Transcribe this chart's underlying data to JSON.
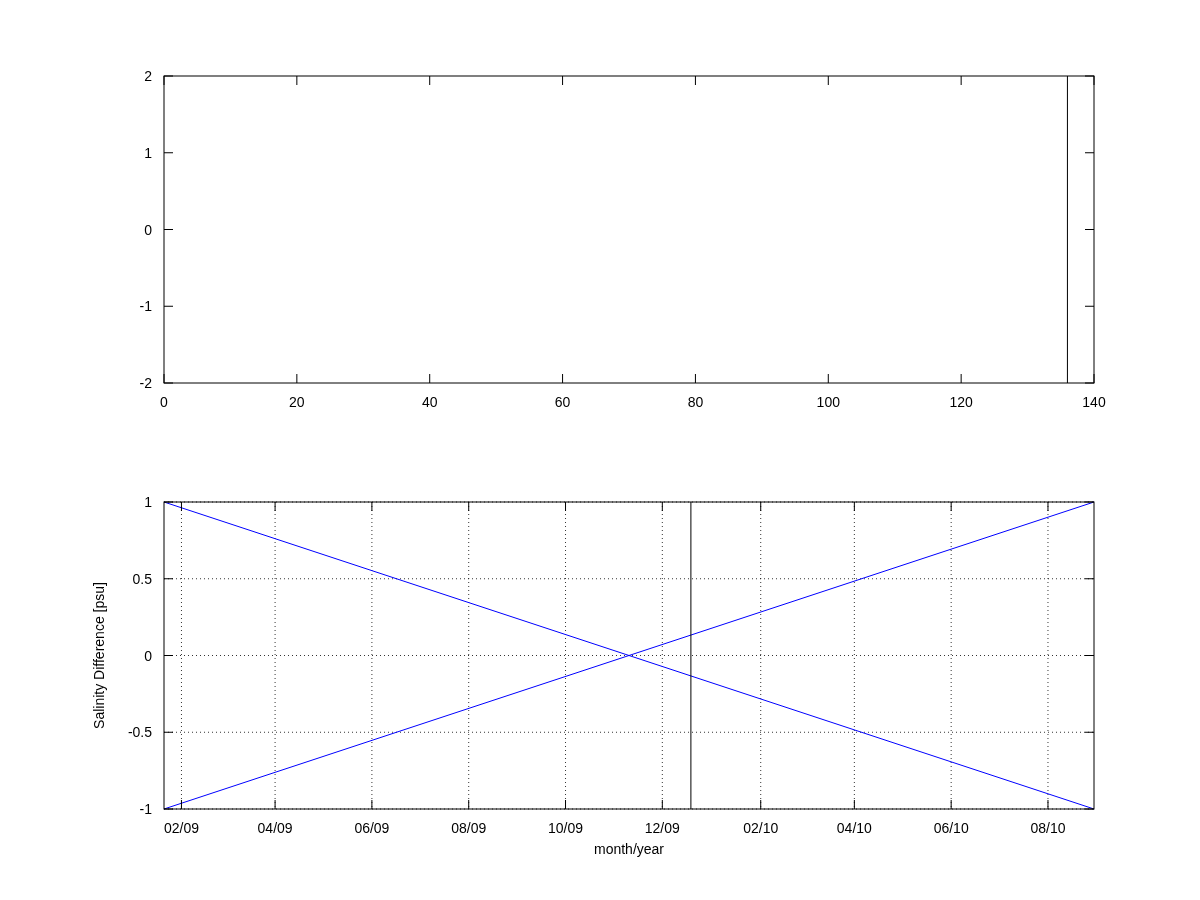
{
  "chart_data": [
    {
      "type": "line",
      "xlim": [
        0,
        140
      ],
      "xticks": [
        0,
        20,
        40,
        60,
        80,
        100,
        120,
        140
      ],
      "ylim": [
        -2,
        2
      ],
      "yticks": [
        -2,
        -1,
        0,
        1,
        2
      ],
      "ref_lines": [
        {
          "axis": "x",
          "value": 136,
          "color": "#000000"
        }
      ]
    },
    {
      "type": "line",
      "xlabel": "month/year",
      "ylabel": "Salinity Difference [psu]",
      "xlim": [
        "2009-01-21",
        "2010-08-30"
      ],
      "xticks": [
        {
          "value": "2009-02",
          "label": "02/09"
        },
        {
          "value": "2009-04",
          "label": "04/09"
        },
        {
          "value": "2009-06",
          "label": "06/09"
        },
        {
          "value": "2009-08",
          "label": "08/09"
        },
        {
          "value": "2009-10",
          "label": "10/09"
        },
        {
          "value": "2009-12",
          "label": "12/09"
        },
        {
          "value": "2010-02",
          "label": "02/10"
        },
        {
          "value": "2010-04",
          "label": "04/10"
        },
        {
          "value": "2010-06",
          "label": "06/10"
        },
        {
          "value": "2010-08",
          "label": "08/10"
        }
      ],
      "ylim": [
        -1,
        1
      ],
      "yticks": [
        -1,
        -0.5,
        0,
        0.5,
        1
      ],
      "grid": true,
      "series": [
        {
          "color": "#0000ff",
          "x": [
            "2009-01-21",
            "2010-08-30"
          ],
          "values": [
            1,
            -1
          ]
        },
        {
          "color": "#0000ff",
          "x": [
            "2009-01-21",
            "2010-08-30"
          ],
          "values": [
            -1,
            1
          ]
        }
      ],
      "ref_lines": [
        {
          "axis": "x",
          "value": "2009-12-19",
          "color": "#000000"
        }
      ]
    }
  ]
}
